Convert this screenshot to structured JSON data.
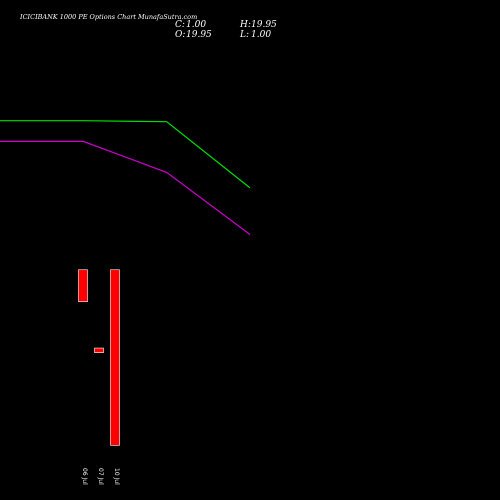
{
  "header": {
    "title": "ICICIBANK 1000 PE Options Chart MunafaSutra.com",
    "open_label": "O:",
    "open_value": "19.95",
    "close_label": "C:",
    "close_value": "1.00",
    "high_label": "H:",
    "high_value": "19.95",
    "low_label": "L:",
    "low_value": "1.00"
  },
  "colors": {
    "background": "#000000",
    "text": "#ffffff",
    "line_1": "#00dd00",
    "line_2": "#cc00cc",
    "candle_down": "#ff0000"
  },
  "chart_data": {
    "type": "candlestick",
    "title": "ICICIBANK 1000 PE Options Chart MunafaSutra.com",
    "xlabel": "",
    "ylabel": "",
    "grid": false,
    "categories": [
      "06 Jul",
      "07 Jul",
      "10 Jul"
    ],
    "candles": [
      {
        "date": "06 Jul",
        "open": 19.95,
        "close": 16.5,
        "high": 19.95,
        "low": 16.5
      },
      {
        "date": "07 Jul",
        "open": 11.5,
        "close": 11.0,
        "high": 11.5,
        "low": 11.0
      },
      {
        "date": "10 Jul",
        "open": 19.95,
        "close": 1.0,
        "high": 19.95,
        "low": 1.0
      }
    ],
    "price_ylim": [
      0.5,
      21
    ],
    "series": [
      {
        "color": "#00dd00",
        "x": [
          0,
          10,
          20,
          30
        ],
        "values": [
          100,
          100,
          99,
          35
        ]
      },
      {
        "color": "#cc00cc",
        "x": [
          0,
          10,
          20,
          30
        ],
        "values": [
          80,
          80,
          50,
          -10
        ]
      }
    ],
    "series_ylim": [
      -25,
      120
    ]
  }
}
